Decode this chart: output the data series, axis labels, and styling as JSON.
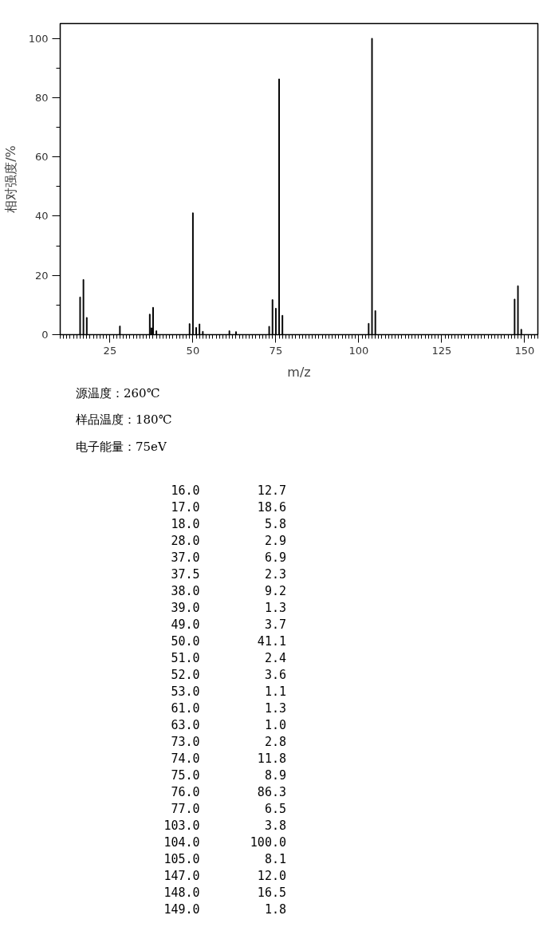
{
  "chart_data": {
    "type": "bar",
    "xlabel": "m/z",
    "ylabel": "相对强度/%",
    "x": [
      16,
      17,
      18,
      28,
      37,
      37.5,
      38,
      39,
      49,
      50,
      51,
      52,
      53,
      61,
      63,
      73,
      74,
      75,
      76,
      77,
      103,
      104,
      105,
      147,
      148,
      149
    ],
    "values": [
      12.7,
      18.6,
      5.8,
      2.9,
      6.9,
      2.3,
      9.2,
      1.3,
      3.7,
      41.1,
      2.4,
      3.6,
      1.1,
      1.3,
      1.0,
      2.8,
      11.8,
      8.9,
      86.3,
      6.5,
      3.8,
      100.0,
      8.1,
      12.0,
      16.5,
      1.8
    ],
    "color": "#000000",
    "xlim": [
      10,
      154
    ],
    "ylim": [
      0,
      105
    ],
    "xticks": [
      25,
      50,
      75,
      100,
      125,
      150,
      {
        "value": 10,
        "label": null
      },
      {
        "value": 11,
        "label": null
      },
      {
        "value": 12,
        "label": null
      },
      {
        "value": 13,
        "label": null
      },
      {
        "value": 14,
        "label": null
      },
      {
        "value": 15,
        "label": null
      },
      {
        "value": 16,
        "label": null
      },
      {
        "value": 17,
        "label": null
      },
      {
        "value": 18,
        "label": null
      },
      {
        "value": 19,
        "label": null
      },
      {
        "value": 20,
        "label": null
      },
      {
        "value": 21,
        "label": null
      },
      {
        "value": 22,
        "label": null
      },
      {
        "value": 23,
        "label": null
      },
      {
        "value": 24,
        "label": null
      },
      {
        "value": 26,
        "label": null
      },
      {
        "value": 27,
        "label": null
      },
      {
        "value": 28,
        "label": null
      },
      {
        "value": 29,
        "label": null
      },
      {
        "value": 30,
        "label": null
      },
      {
        "value": 31,
        "label": null
      },
      {
        "value": 32,
        "label": null
      },
      {
        "value": 33,
        "label": null
      },
      {
        "value": 34,
        "label": null
      },
      {
        "value": 35,
        "label": null
      },
      {
        "value": 36,
        "label": null
      },
      {
        "value": 37,
        "label": null
      },
      {
        "value": 38,
        "label": null
      },
      {
        "value": 39,
        "label": null
      },
      {
        "value": 40,
        "label": null
      },
      {
        "value": 41,
        "label": null
      },
      {
        "value": 42,
        "label": null
      },
      {
        "value": 43,
        "label": null
      },
      {
        "value": 44,
        "label": null
      },
      {
        "value": 45,
        "label": null
      },
      {
        "value": 46,
        "label": null
      },
      {
        "value": 47,
        "label": null
      },
      {
        "value": 48,
        "label": null
      },
      {
        "value": 49,
        "label": null
      },
      {
        "value": 51,
        "label": null
      },
      {
        "value": 52,
        "label": null
      },
      {
        "value": 53,
        "label": null
      },
      {
        "value": 54,
        "label": null
      },
      {
        "value": 55,
        "label": null
      },
      {
        "value": 56,
        "label": null
      },
      {
        "value": 57,
        "label": null
      },
      {
        "value": 58,
        "label": null
      },
      {
        "value": 59,
        "label": null
      },
      {
        "value": 60,
        "label": null
      },
      {
        "value": 61,
        "label": null
      },
      {
        "value": 62,
        "label": null
      },
      {
        "value": 63,
        "label": null
      },
      {
        "value": 64,
        "label": null
      },
      {
        "value": 65,
        "label": null
      },
      {
        "value": 66,
        "label": null
      },
      {
        "value": 67,
        "label": null
      },
      {
        "value": 68,
        "label": null
      },
      {
        "value": 69,
        "label": null
      },
      {
        "value": 70,
        "label": null
      },
      {
        "value": 71,
        "label": null
      },
      {
        "value": 72,
        "label": null
      },
      {
        "value": 73,
        "label": null
      },
      {
        "value": 74,
        "label": null
      },
      {
        "value": 76,
        "label": null
      },
      {
        "value": 77,
        "label": null
      },
      {
        "value": 78,
        "label": null
      },
      {
        "value": 79,
        "label": null
      },
      {
        "value": 80,
        "label": null
      },
      {
        "value": 81,
        "label": null
      },
      {
        "value": 82,
        "label": null
      },
      {
        "value": 83,
        "label": null
      },
      {
        "value": 84,
        "label": null
      },
      {
        "value": 85,
        "label": null
      },
      {
        "value": 86,
        "label": null
      },
      {
        "value": 87,
        "label": null
      },
      {
        "value": 88,
        "label": null
      },
      {
        "value": 89,
        "label": null
      },
      {
        "value": 90,
        "label": null
      },
      {
        "value": 91,
        "label": null
      },
      {
        "value": 92,
        "label": null
      },
      {
        "value": 93,
        "label": null
      },
      {
        "value": 94,
        "label": null
      },
      {
        "value": 95,
        "label": null
      },
      {
        "value": 96,
        "label": null
      },
      {
        "value": 97,
        "label": null
      },
      {
        "value": 98,
        "label": null
      },
      {
        "value": 99,
        "label": null
      },
      {
        "value": 101,
        "label": null
      },
      {
        "value": 102,
        "label": null
      },
      {
        "value": 103,
        "label": null
      },
      {
        "value": 104,
        "label": null
      },
      {
        "value": 105,
        "label": null
      },
      {
        "value": 106,
        "label": null
      },
      {
        "value": 107,
        "label": null
      },
      {
        "value": 108,
        "label": null
      },
      {
        "value": 109,
        "label": null
      },
      {
        "value": 110,
        "label": null
      },
      {
        "value": 111,
        "label": null
      },
      {
        "value": 112,
        "label": null
      },
      {
        "value": 113,
        "label": null
      },
      {
        "value": 114,
        "label": null
      },
      {
        "value": 115,
        "label": null
      },
      {
        "value": 116,
        "label": null
      },
      {
        "value": 117,
        "label": null
      },
      {
        "value": 118,
        "label": null
      },
      {
        "value": 119,
        "label": null
      },
      {
        "value": 120,
        "label": null
      },
      {
        "value": 121,
        "label": null
      },
      {
        "value": 122,
        "label": null
      },
      {
        "value": 123,
        "label": null
      },
      {
        "value": 124,
        "label": null
      },
      {
        "value": 126,
        "label": null
      },
      {
        "value": 127,
        "label": null
      },
      {
        "value": 128,
        "label": null
      },
      {
        "value": 129,
        "label": null
      },
      {
        "value": 130,
        "label": null
      },
      {
        "value": 131,
        "label": null
      },
      {
        "value": 132,
        "label": null
      },
      {
        "value": 133,
        "label": null
      },
      {
        "value": 134,
        "label": null
      },
      {
        "value": 135,
        "label": null
      },
      {
        "value": 136,
        "label": null
      },
      {
        "value": 137,
        "label": null
      },
      {
        "value": 138,
        "label": null
      },
      {
        "value": 139,
        "label": null
      },
      {
        "value": 140,
        "label": null
      },
      {
        "value": 141,
        "label": null
      },
      {
        "value": 142,
        "label": null
      },
      {
        "value": 143,
        "label": null
      },
      {
        "value": 144,
        "label": null
      },
      {
        "value": 145,
        "label": null
      },
      {
        "value": 146,
        "label": null
      },
      {
        "value": 147,
        "label": null
      },
      {
        "value": 148,
        "label": null
      },
      {
        "value": 149,
        "label": null
      },
      {
        "value": 151,
        "label": null
      },
      {
        "value": 152,
        "label": null
      },
      {
        "value": 153,
        "label": null
      },
      {
        "value": 154,
        "label": null
      }
    ],
    "yticks": [
      0,
      20,
      40,
      60,
      80,
      100,
      {
        "value": 10,
        "label": null
      },
      {
        "value": 30,
        "label": null
      },
      {
        "value": 50,
        "label": null
      },
      {
        "value": 70,
        "label": null
      },
      {
        "value": 90,
        "label": null
      }
    ],
    "grid": false,
    "annotations": [
      "源温度：260℃",
      "样品温度：180℃",
      "电子能量：75eV",
      "16.0        12.7",
      "17.0        18.6",
      "18.0         5.8",
      "28.0         2.9",
      "37.0         6.9",
      "37.5         2.3",
      "38.0         9.2",
      "39.0         1.3",
      "49.0         3.7",
      "50.0        41.1",
      "51.0         2.4",
      "52.0         3.6",
      "53.0         1.1",
      "61.0         1.3",
      "63.0         1.0",
      "73.0         2.8",
      "74.0        11.8",
      "75.0         8.9",
      "76.0        86.3",
      "77.0         6.5",
      "103.0         3.8",
      "104.0       100.0",
      "105.0         8.1",
      "147.0        12.0",
      "148.0        16.5",
      "149.0         1.8"
    ]
  }
}
